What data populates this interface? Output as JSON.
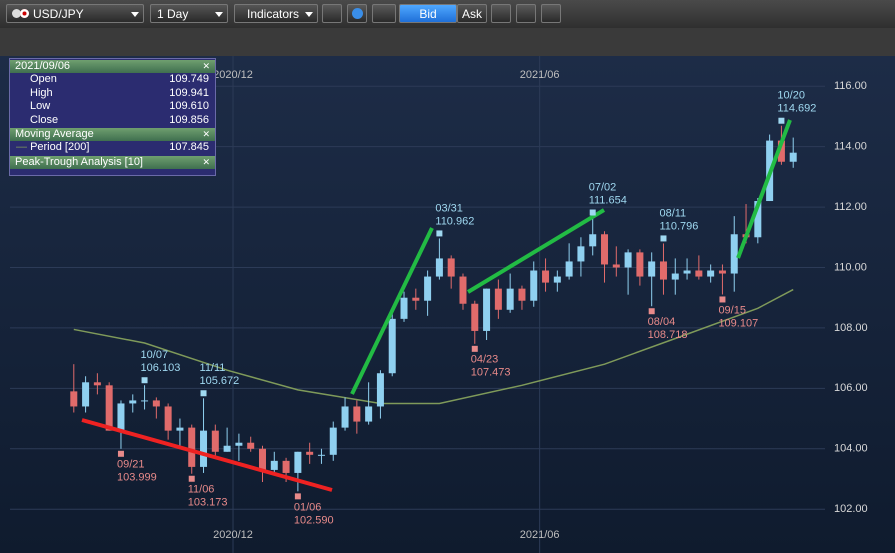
{
  "toolbar": {
    "symbol": "USD/JPY",
    "period": "1 Day",
    "indicators": "Indicators",
    "bid": "Bid",
    "ask": "Ask"
  },
  "panel": {
    "date": "2021/09/06",
    "rows": [
      [
        "Open",
        "109.749"
      ],
      [
        "High",
        "109.941"
      ],
      [
        "Low",
        "109.610"
      ],
      [
        "Close",
        "109.856"
      ]
    ],
    "ma_title": "Moving Average",
    "ma_row": [
      "Period [200]",
      "107.845"
    ],
    "pt_title": "Peak-Trough Analysis [10]"
  },
  "chart_data": {
    "type": "candlestick",
    "up_color": "#8fd0f0",
    "down_color": "#e06b6b",
    "ma_color": "#7f9a5a",
    "xlim": [
      -1,
      62
    ],
    "xticks": [
      {
        "value": 13.5,
        "label": "2020/12"
      },
      {
        "value": 39.5,
        "label": "2021/06"
      }
    ],
    "ylim": [
      100.55,
      117.0
    ],
    "yticks": [
      {
        "value": 102,
        "label": "102.00"
      },
      {
        "value": 104,
        "label": "104.00"
      },
      {
        "value": 106,
        "label": "106.00"
      },
      {
        "value": 108,
        "label": "108.00"
      },
      {
        "value": 110,
        "label": "110.00"
      },
      {
        "value": 112,
        "label": "112.00"
      },
      {
        "value": 114,
        "label": "114.00"
      },
      {
        "value": 116,
        "label": "116.00"
      }
    ],
    "grid": true,
    "open": [
      105.9,
      105.4,
      106.2,
      106.1,
      104.6,
      105.5,
      105.6,
      105.6,
      105.4,
      104.6,
      104.7,
      103.4,
      104.6,
      103.9,
      104.1,
      104.2,
      104.0,
      103.3,
      103.6,
      103.2,
      103.9,
      103.8,
      103.8,
      104.7,
      105.4,
      104.9,
      105.4,
      106.5,
      108.3,
      109.0,
      108.9,
      109.7,
      110.3,
      109.7,
      108.8,
      107.9,
      109.3,
      108.6,
      109.3,
      108.9,
      109.9,
      109.5,
      109.7,
      110.2,
      110.7,
      111.1,
      110.1,
      110.0,
      110.5,
      109.7,
      110.2,
      109.6,
      109.8,
      109.9,
      109.7,
      109.9,
      109.8,
      111.1,
      111.0,
      112.2,
      114.2,
      113.5
    ],
    "high": [
      106.8,
      106.4,
      106.5,
      106.2,
      105.6,
      105.8,
      106.103,
      105.7,
      105.5,
      105.0,
      104.8,
      105.672,
      104.8,
      104.7,
      104.5,
      104.4,
      104.1,
      103.9,
      103.7,
      103.9,
      104.2,
      104.0,
      104.9,
      105.7,
      105.6,
      106.2,
      106.6,
      108.6,
      109.2,
      109.3,
      109.9,
      110.962,
      110.4,
      109.8,
      108.9,
      109.3,
      109.6,
      109.8,
      109.4,
      110.2,
      110.3,
      109.9,
      110.8,
      111.0,
      111.654,
      111.2,
      110.7,
      110.6,
      110.6,
      110.5,
      110.796,
      110.3,
      110.3,
      110.4,
      110.1,
      110.1,
      111.7,
      112.1,
      112.3,
      114.4,
      114.692,
      114.3
    ],
    "low": [
      105.2,
      105.2,
      105.8,
      104.6,
      103.999,
      105.2,
      105.3,
      105.0,
      104.3,
      104.0,
      103.173,
      103.2,
      103.7,
      103.9,
      103.6,
      103.9,
      102.9,
      103.2,
      102.9,
      102.59,
      103.5,
      103.5,
      103.6,
      104.6,
      104.5,
      104.8,
      105.0,
      106.4,
      108.2,
      108.6,
      108.4,
      109.6,
      109.3,
      108.6,
      107.473,
      107.6,
      108.3,
      108.5,
      108.6,
      108.7,
      109.2,
      109.2,
      109.6,
      109.7,
      110.4,
      109.5,
      109.7,
      109.1,
      109.4,
      108.718,
      109.1,
      109.1,
      109.6,
      109.6,
      109.5,
      109.107,
      109.2,
      110.8,
      110.8,
      112.2,
      113.4,
      113.3
    ],
    "close": [
      105.4,
      106.2,
      106.1,
      104.6,
      105.5,
      105.6,
      105.6,
      105.4,
      104.6,
      104.7,
      103.4,
      104.6,
      103.9,
      104.1,
      104.2,
      104.0,
      103.3,
      103.6,
      103.2,
      103.9,
      103.8,
      103.8,
      104.7,
      105.4,
      104.9,
      105.4,
      106.5,
      108.3,
      109.0,
      108.9,
      109.7,
      110.3,
      109.7,
      108.8,
      107.9,
      109.3,
      108.6,
      109.3,
      108.9,
      109.9,
      109.5,
      109.7,
      110.2,
      110.7,
      111.1,
      110.1,
      110.0,
      110.5,
      109.7,
      110.2,
      109.6,
      109.8,
      109.9,
      109.7,
      109.9,
      109.8,
      111.1,
      111.0,
      112.2,
      114.2,
      113.5,
      113.8
    ],
    "ma": {
      "x": [
        0,
        6,
        13,
        19,
        26,
        31,
        38,
        45,
        51,
        58,
        61
      ],
      "values": [
        107.95,
        107.5,
        106.6,
        105.95,
        105.5,
        105.5,
        106.1,
        106.8,
        107.65,
        108.65,
        109.27
      ]
    },
    "annotations": [
      {
        "x": 4,
        "date": "09/21",
        "price": {
          "value": 103.999,
          "label": "103.999"
        }
      },
      {
        "x": 6,
        "date": "10/07",
        "price": {
          "value": 106.103,
          "label": "106.103"
        }
      },
      {
        "x": 10,
        "date": "11/06",
        "price": {
          "value": 103.173,
          "label": "103.173"
        }
      },
      {
        "x": 11,
        "date": "11/11",
        "price": {
          "value": 105.672,
          "label": "105.672"
        }
      },
      {
        "x": 19,
        "date": "01/06",
        "price": {
          "value": 102.59,
          "label": "102.590"
        }
      },
      {
        "x": 31,
        "date": "03/31",
        "price": {
          "value": 110.962,
          "label": "110.962"
        }
      },
      {
        "x": 34,
        "date": "04/23",
        "price": {
          "value": 107.473,
          "label": "107.473"
        }
      },
      {
        "x": 44,
        "date": "07/02",
        "price": {
          "value": 111.654,
          "label": "111.654"
        }
      },
      {
        "x": 49,
        "date": "08/04",
        "price": {
          "value": 108.718,
          "label": "108.718"
        }
      },
      {
        "x": 50,
        "date": "08/11",
        "price": {
          "value": 110.796,
          "label": "110.796"
        }
      },
      {
        "x": 55,
        "date": "09/15",
        "price": {
          "value": 109.107,
          "label": "109.107"
        }
      },
      {
        "x": 60,
        "date": "10/20",
        "price": {
          "value": 114.692,
          "label": "114.692"
        }
      }
    ]
  }
}
